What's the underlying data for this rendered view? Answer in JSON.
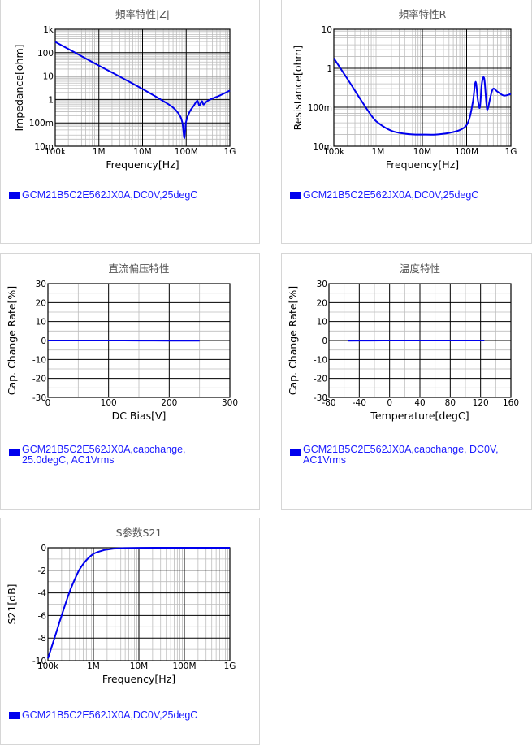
{
  "colors": {
    "line": "#0000ee",
    "grid_major": "#000000",
    "grid_minor": "#bdbdbd",
    "legend_text": "#1a1aff"
  },
  "chart_data": [
    {
      "id": "impedance",
      "type": "line",
      "title": "頻率特性|Z|",
      "xlabel": "Frequency[Hz]",
      "ylabel": "Impedance[ohm]",
      "xscale": "log",
      "yscale": "log",
      "xlim": [
        100000,
        1000000000
      ],
      "ylim": [
        0.01,
        1000
      ],
      "xticks": [
        "100k",
        "1M",
        "10M",
        "100M",
        "1G"
      ],
      "yticks": [
        "10m",
        "100m",
        "1",
        "10",
        "100",
        "1k"
      ],
      "grid": true,
      "legend": [
        "GCM21B5C2E562JX0A,DC0V,25degC"
      ],
      "series": [
        {
          "x": [
            100000,
            300000,
            1000000,
            3000000,
            10000000,
            30000000,
            50000000,
            70000000,
            80000000,
            85000000,
            90000000,
            95000000,
            100000000,
            120000000,
            150000000,
            180000000,
            200000000,
            230000000,
            250000000,
            300000000,
            400000000,
            600000000,
            1000000000
          ],
          "y": [
            290,
            95,
            28,
            9.5,
            2.8,
            0.85,
            0.45,
            0.22,
            0.12,
            0.06,
            0.022,
            0.05,
            0.12,
            0.3,
            0.55,
            0.9,
            0.55,
            0.85,
            0.6,
            0.85,
            1.1,
            1.5,
            2.4
          ]
        }
      ]
    },
    {
      "id": "resistance",
      "type": "line",
      "title": "頻率特性R",
      "xlabel": "Frequency[Hz]",
      "ylabel": "Resistance[ohm]",
      "xscale": "log",
      "yscale": "log",
      "xlim": [
        100000,
        1000000000
      ],
      "ylim": [
        0.01,
        10
      ],
      "xticks": [
        "100k",
        "1M",
        "10M",
        "100M",
        "1G"
      ],
      "yticks": [
        "10m",
        "100m",
        "1",
        "10"
      ],
      "grid": true,
      "legend": [
        "GCM21B5C2E562JX0A,DC0V,25degC"
      ],
      "series": [
        {
          "x": [
            100000,
            200000,
            400000,
            700000,
            1000000,
            2000000,
            4000000,
            7000000,
            10000000,
            20000000,
            40000000,
            70000000,
            100000000,
            120000000,
            140000000,
            160000000,
            180000000,
            200000000,
            220000000,
            250000000,
            280000000,
            300000000,
            350000000,
            400000000,
            500000000,
            700000000,
            1000000000
          ],
          "y": [
            1.8,
            0.55,
            0.16,
            0.062,
            0.04,
            0.025,
            0.021,
            0.02,
            0.02,
            0.02,
            0.022,
            0.026,
            0.035,
            0.06,
            0.15,
            0.45,
            0.15,
            0.1,
            0.4,
            0.55,
            0.12,
            0.09,
            0.2,
            0.3,
            0.25,
            0.2,
            0.22
          ]
        }
      ]
    },
    {
      "id": "dc-bias",
      "type": "line",
      "title": "直流偏压特性",
      "xlabel": "DC Bias[V]",
      "ylabel": "Cap. Change Rate[%]",
      "xscale": "linear",
      "yscale": "linear",
      "xlim": [
        0,
        300
      ],
      "ylim": [
        -30,
        30
      ],
      "xticks": [
        "0",
        "100",
        "200",
        "300"
      ],
      "yticks": [
        "-30",
        "-20",
        "-10",
        "0",
        "10",
        "20",
        "30"
      ],
      "grid": true,
      "legend": [
        "GCM21B5C2E562JX0A,capchange,",
        "25.0degC, AC1Vrms"
      ],
      "series": [
        {
          "x": [
            0,
            50,
            100,
            150,
            200,
            250
          ],
          "y": [
            0,
            0,
            0,
            -0.05,
            -0.1,
            -0.15
          ]
        }
      ]
    },
    {
      "id": "temperature",
      "type": "line",
      "title": "温度特性",
      "xlabel": "Temperature[degC]",
      "ylabel": "Cap. Change Rate[%]",
      "xscale": "linear",
      "yscale": "linear",
      "xlim": [
        -80,
        160
      ],
      "ylim": [
        -30,
        30
      ],
      "xticks": [
        "-80",
        "-40",
        "0",
        "40",
        "80",
        "120",
        "160"
      ],
      "yticks": [
        "-30",
        "-20",
        "-10",
        "0",
        "10",
        "20",
        "30"
      ],
      "grid": true,
      "legend": [
        "GCM21B5C2E562JX0A,capchange, DC0V,",
        "AC1Vrms"
      ],
      "series": [
        {
          "x": [
            -55,
            -25,
            0,
            25,
            50,
            85,
            125
          ],
          "y": [
            -0.1,
            -0.05,
            0,
            0,
            0,
            0,
            0
          ]
        }
      ]
    },
    {
      "id": "s21",
      "type": "line",
      "title": "S参数S21",
      "xlabel": "Frequency[Hz]",
      "ylabel": "S21[dB]",
      "xscale": "log",
      "yscale": "linear",
      "xlim": [
        100000,
        1000000000
      ],
      "ylim": [
        -10,
        0
      ],
      "xticks": [
        "100k",
        "1M",
        "10M",
        "100M",
        "1G"
      ],
      "yticks": [
        "-10",
        "-8",
        "-6",
        "-4",
        "-2",
        "0"
      ],
      "grid": true,
      "legend": [
        "GCM21B5C2E562JX0A,DC0V,25degC"
      ],
      "series": [
        {
          "x": [
            100000,
            150000,
            200000,
            300000,
            400000,
            500000,
            700000,
            1000000,
            1500000,
            2000000,
            3000000,
            5000000,
            10000000,
            30000000,
            100000000,
            300000000,
            1000000000
          ],
          "y": [
            -9.8,
            -7.6,
            -6.0,
            -3.9,
            -2.7,
            -1.9,
            -1.1,
            -0.55,
            -0.27,
            -0.16,
            -0.07,
            -0.03,
            -0.01,
            0,
            0,
            0,
            0
          ]
        }
      ]
    }
  ]
}
